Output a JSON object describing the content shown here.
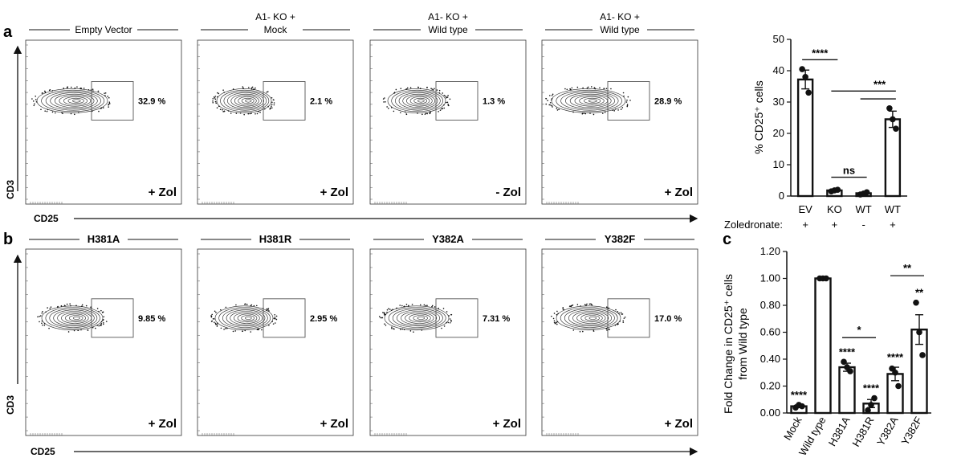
{
  "panels": {
    "a": "a",
    "b": "b",
    "c": "c"
  },
  "flow": {
    "row_a": {
      "headers": [
        {
          "line1": "",
          "line2": "Empty Vector"
        },
        {
          "line1": "A1- KO +",
          "line2": "Mock"
        },
        {
          "line1": "A1- KO +",
          "line2": "Wild type"
        },
        {
          "line1": "A1- KO +",
          "line2": "Wild type"
        }
      ],
      "percents": [
        "32.9 %",
        "2.1 %",
        "1.3 %",
        "28.9 %"
      ],
      "zol": [
        "+ Zol",
        "+ Zol",
        "- Zol",
        "+ Zol"
      ],
      "xlabel": "CD25",
      "ylabel": "CD3"
    },
    "row_b": {
      "headers": [
        "H381A",
        "H381R",
        "Y382A",
        "Y382F"
      ],
      "percents": [
        "9.85 %",
        "2.95 %",
        "7.31 %",
        "17.0 %"
      ],
      "zol": [
        "+ Zol",
        "+ Zol",
        "+ Zol",
        "+ Zol"
      ],
      "xlabel": "CD25",
      "ylabel": "CD3"
    }
  },
  "chart_data": [
    {
      "type": "bar",
      "categories": [
        "EV",
        "KO",
        "WT",
        "WT"
      ],
      "values": [
        37.2,
        1.8,
        0.9,
        24.5
      ],
      "errors": [
        3.0,
        0.3,
        0.3,
        2.6
      ],
      "points": [
        [
          40.5,
          38.0,
          33.0
        ],
        [
          1.5,
          1.8,
          2.0
        ],
        [
          0.5,
          0.8,
          1.2
        ],
        [
          28.0,
          24.5,
          21.5
        ]
      ],
      "ylim": [
        0,
        50
      ],
      "yticks": [
        "0",
        "10",
        "20",
        "30",
        "40",
        "50"
      ],
      "ylabel": "% CD25⁺ cells",
      "row_label": "Zoledronate:",
      "zoledronate": [
        "+",
        "+",
        "-",
        "+"
      ],
      "comparisons": [
        {
          "from": 0,
          "to": 1,
          "label": "****"
        },
        {
          "from": 1,
          "to": 2,
          "label": "ns"
        },
        {
          "from": 1,
          "to": 3,
          "label": "***"
        },
        {
          "from": 2,
          "to": 3,
          "label": ""
        }
      ]
    },
    {
      "type": "bar",
      "categories": [
        "Mock",
        "Wild type",
        "H381A",
        "H381R",
        "Y382A",
        "Y382F"
      ],
      "values": [
        0.05,
        1.0,
        0.34,
        0.07,
        0.29,
        0.62
      ],
      "errors": [
        0.01,
        0.0,
        0.03,
        0.03,
        0.05,
        0.11
      ],
      "points": [
        [
          0.04,
          0.06,
          0.05
        ],
        [
          1.0,
          1.0,
          1.0
        ],
        [
          0.38,
          0.34,
          0.31
        ],
        [
          0.02,
          0.06,
          0.11
        ],
        [
          0.33,
          0.3,
          0.2
        ],
        [
          0.82,
          0.6,
          0.43
        ]
      ],
      "ylim": [
        0,
        1.2
      ],
      "yticks": [
        "0.00",
        "0.20",
        "0.40",
        "0.60",
        "0.80",
        "1.00",
        "1.20"
      ],
      "ylabel_line1": "Fold Change in CD25⁺ cells",
      "ylabel_line2": "from Wild type",
      "bar_stars": [
        "****",
        "",
        "****",
        "****",
        "****",
        "**"
      ],
      "comparisons": [
        {
          "from": 2,
          "to": 3,
          "label": "*"
        },
        {
          "from": 4,
          "to": 5,
          "label": "**"
        }
      ]
    }
  ]
}
